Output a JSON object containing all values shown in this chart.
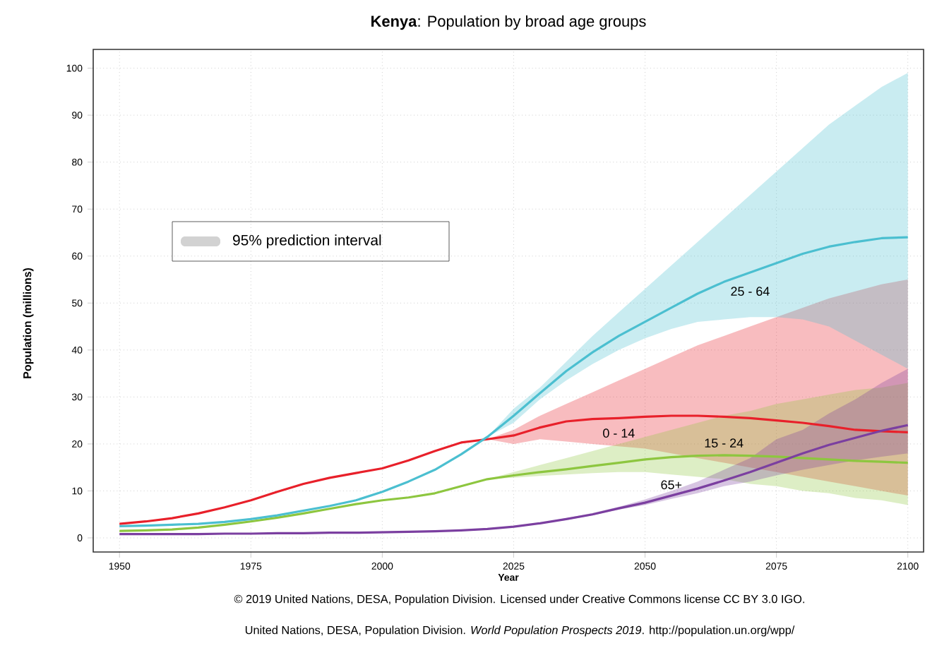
{
  "chart_data": {
    "type": "line",
    "title": "**Kenya**: Population by broad age groups",
    "xlabel": "Year",
    "ylabel": "Population (millions)",
    "legend_title": "95% prediction interval",
    "grid": true,
    "x": [
      1950,
      1955,
      1960,
      1965,
      1970,
      1975,
      1980,
      1985,
      1990,
      1995,
      2000,
      2005,
      2010,
      2015,
      2020,
      2025,
      2030,
      2035,
      2040,
      2045,
      2050,
      2055,
      2060,
      2065,
      2070,
      2075,
      2080,
      2085,
      2090,
      2095,
      2100
    ],
    "xlim": [
      1945,
      2103
    ],
    "ylim": [
      -3,
      104
    ],
    "xticks": [
      1950,
      1975,
      2000,
      2025,
      2050,
      2075,
      2100
    ],
    "yticks": [
      0,
      10,
      20,
      30,
      40,
      50,
      60,
      70,
      80,
      90,
      100
    ],
    "series": [
      {
        "name": "0 - 14",
        "color": "#e8202a",
        "values": [
          3.0,
          3.5,
          4.2,
          5.2,
          6.5,
          8.0,
          9.8,
          11.5,
          12.8,
          13.8,
          14.8,
          16.5,
          18.5,
          20.3,
          21.0,
          21.8,
          23.5,
          24.8,
          25.3,
          25.5,
          25.8,
          26.0,
          26.0,
          25.8,
          25.5,
          25.0,
          24.5,
          23.8,
          23.0,
          22.7,
          22.5
        ],
        "lower": [
          null,
          null,
          null,
          null,
          null,
          null,
          null,
          null,
          null,
          null,
          null,
          null,
          null,
          null,
          21,
          20,
          21,
          20.5,
          20,
          19.5,
          19,
          18,
          17,
          16,
          15,
          14,
          13,
          12,
          11,
          10,
          9
        ],
        "upper": [
          null,
          null,
          null,
          null,
          null,
          null,
          null,
          null,
          null,
          null,
          null,
          null,
          null,
          null,
          21,
          23,
          26,
          28.5,
          31,
          33.5,
          36,
          38.5,
          41,
          43,
          45,
          47,
          49,
          51,
          52.5,
          54,
          55
        ]
      },
      {
        "name": "15 - 24",
        "color": "#8dc63f",
        "values": [
          1.5,
          1.6,
          1.8,
          2.2,
          2.8,
          3.5,
          4.3,
          5.2,
          6.2,
          7.2,
          8.0,
          8.6,
          9.5,
          11.0,
          12.5,
          13.3,
          14.0,
          14.6,
          15.3,
          16.0,
          16.7,
          17.2,
          17.5,
          17.6,
          17.5,
          17.3,
          17.0,
          16.7,
          16.4,
          16.2,
          16.0
        ],
        "lower": [
          null,
          null,
          null,
          null,
          null,
          null,
          null,
          null,
          null,
          null,
          null,
          null,
          null,
          null,
          12.5,
          12.8,
          13.2,
          13.5,
          13.8,
          14,
          14,
          13.5,
          13,
          12.5,
          11.5,
          11,
          10,
          9.5,
          8.5,
          8,
          7
        ],
        "upper": [
          null,
          null,
          null,
          null,
          null,
          null,
          null,
          null,
          null,
          null,
          null,
          null,
          null,
          null,
          12.5,
          14,
          15.5,
          17,
          18.5,
          20,
          21.5,
          23,
          24.5,
          26,
          27,
          28.5,
          29.5,
          30.5,
          31.5,
          32,
          33
        ]
      },
      {
        "name": "25 - 64",
        "color": "#4bbfd0",
        "values": [
          2.5,
          2.6,
          2.8,
          3.0,
          3.4,
          4.0,
          4.8,
          5.8,
          6.8,
          8.0,
          9.8,
          12.0,
          14.5,
          17.8,
          21.5,
          26.0,
          30.8,
          35.5,
          39.5,
          43.0,
          46.0,
          49.0,
          52.0,
          54.5,
          56.5,
          58.5,
          60.5,
          62.0,
          63.0,
          63.8,
          64.0
        ],
        "lower": [
          null,
          null,
          null,
          null,
          null,
          null,
          null,
          null,
          null,
          null,
          null,
          null,
          null,
          null,
          21.5,
          24.5,
          29.5,
          33.5,
          37,
          40,
          42.5,
          44.5,
          46,
          46.5,
          47,
          47,
          46.5,
          45,
          42,
          39,
          36
        ],
        "upper": [
          null,
          null,
          null,
          null,
          null,
          null,
          null,
          null,
          null,
          null,
          null,
          null,
          null,
          null,
          21.5,
          27.5,
          32,
          37.5,
          43,
          48,
          53,
          58,
          63,
          68,
          73,
          78,
          83,
          88,
          92,
          96,
          99
        ]
      },
      {
        "name": "65+",
        "color": "#7b3fa0",
        "values": [
          0.8,
          0.8,
          0.8,
          0.8,
          0.9,
          0.9,
          1.0,
          1.0,
          1.1,
          1.1,
          1.2,
          1.3,
          1.4,
          1.6,
          1.9,
          2.4,
          3.1,
          4.0,
          5.0,
          6.3,
          7.5,
          9.0,
          10.5,
          12.2,
          14.0,
          16.0,
          18.0,
          19.8,
          21.3,
          22.8,
          24.0
        ],
        "lower": [
          null,
          null,
          null,
          null,
          null,
          null,
          null,
          null,
          null,
          null,
          null,
          null,
          null,
          null,
          1.9,
          2.3,
          3,
          3.8,
          4.8,
          6,
          7,
          8.3,
          9.5,
          11,
          12,
          13.3,
          14.5,
          15.5,
          16.5,
          17.3,
          18
        ],
        "upper": [
          null,
          null,
          null,
          null,
          null,
          null,
          null,
          null,
          null,
          null,
          null,
          null,
          null,
          null,
          1.9,
          2.5,
          3.2,
          4.2,
          5.3,
          6.6,
          8.2,
          10,
          12,
          14.5,
          17,
          21,
          23,
          26.5,
          29.5,
          33,
          36
        ]
      }
    ],
    "annotations": [
      "© 2019 United Nations, DESA, Population Division. Licensed under Creative Commons license CC BY 3.0 IGO.",
      "United Nations, DESA, Population Division. *World Population Prospects 2019*. http://population.un.org/wpp/"
    ]
  }
}
